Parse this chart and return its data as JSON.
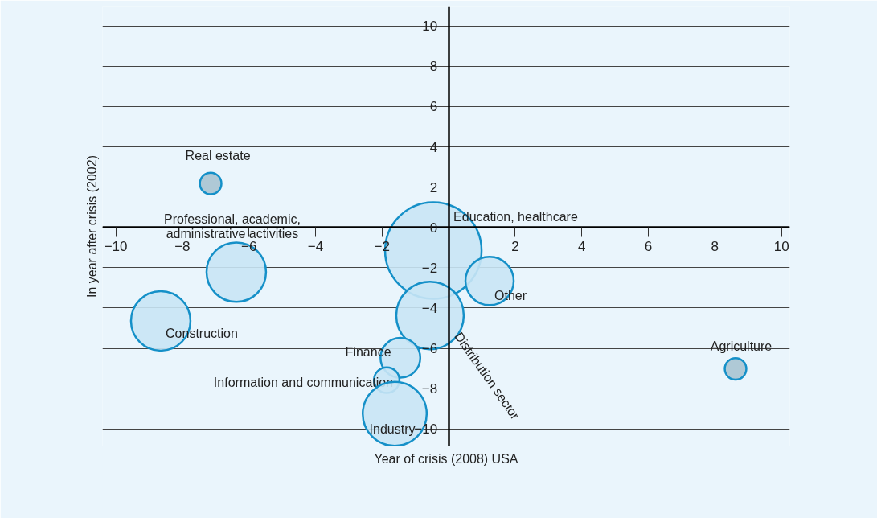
{
  "chart_data": {
    "type": "bubble",
    "xlabel": "Year of crisis (2008) USA",
    "ylabel": "In year after crisis (2002)",
    "xlim": [
      -10.4,
      10.25
    ],
    "ylim": [
      -10.85,
      10.95
    ],
    "xticks": [
      -10,
      -8,
      -6,
      -4,
      -2,
      2,
      4,
      6,
      8,
      10
    ],
    "yticks": [
      -10,
      -8,
      -6,
      -4,
      -2,
      0,
      2,
      4,
      6,
      8,
      10
    ],
    "grid": "y",
    "series": [
      {
        "name": "Real estate",
        "color": "#a9c4d2",
        "x": [
          -7.15
        ],
        "values": [
          2.18
        ],
        "sizes": [
          0.05
        ]
      },
      {
        "name": "Professional, academic, administrative activities",
        "color": "#c9e6f5",
        "x": [
          -6.38
        ],
        "values": [
          -2.22
        ],
        "sizes": [
          0.38
        ]
      },
      {
        "name": "Construction",
        "color": "#c9e6f5",
        "x": [
          -8.65
        ],
        "values": [
          -4.64
        ],
        "sizes": [
          0.38
        ]
      },
      {
        "name": "Education, healthcare",
        "color": "#c9e6f5",
        "x": [
          -0.46
        ],
        "values": [
          -1.15
        ],
        "sizes": [
          1
        ]
      },
      {
        "name": "Other",
        "color": "#c9e6f5",
        "x": [
          1.23
        ],
        "values": [
          -2.66
        ],
        "sizes": [
          0.25
        ]
      },
      {
        "name": "Distribution sector",
        "color": "#c9e6f5",
        "x": [
          -0.56
        ],
        "values": [
          -4.37
        ],
        "sizes": [
          0.49
        ]
      },
      {
        "name": "Finance",
        "color": "#c9e6f5",
        "x": [
          -1.45
        ],
        "values": [
          -6.47
        ],
        "sizes": [
          0.17
        ]
      },
      {
        "name": "Information and communication",
        "color": "#c9e6f5",
        "x": [
          -1.86
        ],
        "values": [
          -7.58
        ],
        "sizes": [
          0.07
        ]
      },
      {
        "name": "Industry",
        "color": "#c9e6f5",
        "x": [
          -1.62
        ],
        "values": [
          -9.25
        ],
        "sizes": [
          0.44
        ]
      },
      {
        "name": "Agriculture",
        "color": "#a9c4d2",
        "x": [
          8.62
        ],
        "values": [
          -7.02
        ],
        "sizes": [
          0.05
        ]
      }
    ]
  }
}
